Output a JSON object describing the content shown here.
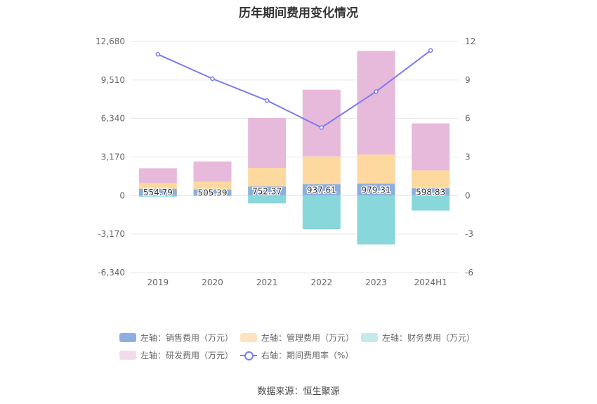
{
  "title": "历年期间费用变化情况",
  "source": "数据来源：恒生聚源",
  "colors": {
    "sales": "#8eafde",
    "admin": "#fdd9a0",
    "finance": "#88d7db",
    "rd": "#e7b9da",
    "rate": "#7b7cf0"
  },
  "legend": [
    {
      "label": "左轴：销售费用（万元）",
      "color": "#8eafde",
      "kind": "bar"
    },
    {
      "label": "左轴：管理费用（万元）",
      "color": "#fde3c0",
      "kind": "bar"
    },
    {
      "label": "左轴：财务费用（万元）",
      "color": "#c3ebed",
      "kind": "bar"
    },
    {
      "label": "左轴：研发费用（万元）",
      "color": "#f3dbec",
      "kind": "bar"
    },
    {
      "label": "右轴：期间费用率（%）",
      "color": "#7b7cf0",
      "kind": "line"
    }
  ],
  "chart_data": {
    "type": "bar",
    "title": "历年期间费用变化情况",
    "categories": [
      "2019",
      "2020",
      "2021",
      "2022",
      "2023",
      "2024H1"
    ],
    "left_axis": {
      "min": -6340,
      "max": 12680,
      "ticks": [
        -6340,
        -3170,
        0,
        3170,
        6340,
        9510,
        12680
      ],
      "tick_labels": [
        "-6,340",
        "-3,170",
        "0",
        "3,170",
        "6,340",
        "9,510",
        "12,680"
      ]
    },
    "right_axis": {
      "min": -6,
      "max": 12,
      "ticks": [
        -6,
        -3,
        0,
        3,
        6,
        9,
        12
      ],
      "tick_labels": [
        "-6",
        "-3",
        "0",
        "3",
        "6",
        "9",
        "12"
      ]
    },
    "series": [
      {
        "name": "左轴：销售费用（万元）",
        "axis": "left",
        "type": "stacked-bar",
        "values": [
          554.79,
          505.39,
          752.37,
          937.61,
          979.31,
          598.83
        ],
        "labels": [
          "554.79",
          "505.39",
          "752.37",
          "937.61",
          "979.31",
          "598.83"
        ]
      },
      {
        "name": "左轴：管理费用（万元）",
        "axis": "left",
        "type": "stacked-bar",
        "values": [
          480,
          640,
          1520,
          2280,
          2400,
          1480
        ]
      },
      {
        "name": "左轴：财务费用（万元）",
        "axis": "left",
        "type": "stacked-bar",
        "values": [
          -90,
          -40,
          -640,
          -2760,
          -4020,
          -1230
        ]
      },
      {
        "name": "左轴：研发费用（万元）",
        "axis": "left",
        "type": "stacked-bar",
        "values": [
          1210,
          1660,
          4110,
          5490,
          8520,
          3860
        ]
      },
      {
        "name": "右轴：期间费用率（%）",
        "axis": "right",
        "type": "line",
        "values": [
          11.0,
          9.1,
          7.4,
          5.3,
          8.1,
          11.3
        ]
      }
    ],
    "grid": true,
    "legend_position": "bottom"
  }
}
